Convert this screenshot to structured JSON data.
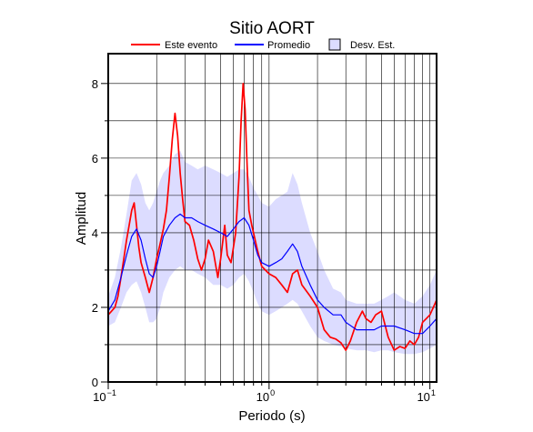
{
  "chart_data": {
    "type": "line",
    "title": "Sitio AORT",
    "xlabel": "Periodo (s)",
    "ylabel": "Amplitud",
    "xscale": "log",
    "xlim": [
      0.1,
      11
    ],
    "ylim": [
      0,
      8.8
    ],
    "grid": true,
    "legend_position": "top",
    "x_ticks": [
      {
        "value": 0.1,
        "base": "10",
        "exp": "−1"
      },
      {
        "value": 1,
        "base": "10",
        "exp": "0"
      },
      {
        "value": 10,
        "base": "10",
        "exp": "1"
      }
    ],
    "y_ticks": [
      {
        "value": 0,
        "label": "0"
      },
      {
        "value": 2,
        "label": "2"
      },
      {
        "value": 4,
        "label": "4"
      },
      {
        "value": 6,
        "label": "6"
      },
      {
        "value": 8,
        "label": "8"
      }
    ],
    "legend": [
      {
        "label": "Este evento",
        "kind": "line",
        "color": "#ff0000"
      },
      {
        "label": "Promedio",
        "kind": "line",
        "color": "#0000ff"
      },
      {
        "label": "Desv. Est.",
        "kind": "band",
        "color": "#dcdcff"
      }
    ],
    "series": [
      {
        "name": "Este evento",
        "color": "#ff0000",
        "x": [
          0.1,
          0.105,
          0.11,
          0.115,
          0.12,
          0.125,
          0.13,
          0.135,
          0.14,
          0.145,
          0.15,
          0.155,
          0.16,
          0.17,
          0.18,
          0.19,
          0.2,
          0.21,
          0.22,
          0.23,
          0.24,
          0.25,
          0.26,
          0.27,
          0.28,
          0.29,
          0.3,
          0.32,
          0.34,
          0.36,
          0.38,
          0.4,
          0.42,
          0.45,
          0.48,
          0.5,
          0.53,
          0.55,
          0.58,
          0.6,
          0.62,
          0.65,
          0.67,
          0.69,
          0.71,
          0.73,
          0.75,
          0.78,
          0.8,
          0.85,
          0.9,
          1.0,
          1.1,
          1.2,
          1.3,
          1.4,
          1.5,
          1.6,
          1.8,
          2.0,
          2.2,
          2.4,
          2.6,
          2.8,
          3.0,
          3.2,
          3.5,
          3.8,
          4.0,
          4.3,
          4.6,
          5.0,
          5.5,
          6.0,
          6.5,
          7.0,
          7.5,
          8.0,
          8.5,
          9.0,
          9.5,
          10.0,
          10.5,
          11.0
        ],
        "y": [
          1.8,
          1.9,
          2.0,
          2.3,
          2.8,
          3.3,
          3.8,
          4.2,
          4.6,
          4.8,
          4.2,
          3.6,
          3.2,
          2.8,
          2.4,
          2.8,
          3.3,
          3.7,
          4.1,
          4.6,
          5.5,
          6.5,
          7.2,
          6.6,
          5.6,
          4.9,
          4.3,
          4.2,
          3.8,
          3.3,
          3.0,
          3.3,
          3.8,
          3.5,
          2.8,
          3.3,
          4.2,
          3.4,
          3.2,
          3.6,
          4.0,
          5.5,
          7.0,
          8.0,
          7.3,
          5.8,
          4.6,
          4.2,
          4.0,
          3.5,
          3.1,
          2.9,
          2.8,
          2.6,
          2.4,
          2.9,
          3.0,
          2.6,
          2.3,
          2.0,
          1.4,
          1.2,
          1.15,
          1.05,
          0.85,
          1.1,
          1.6,
          1.9,
          1.7,
          1.6,
          1.8,
          1.9,
          1.2,
          0.85,
          0.95,
          0.9,
          1.1,
          1.0,
          1.2,
          1.6,
          1.7,
          1.8,
          2.0,
          2.2
        ]
      },
      {
        "name": "Promedio",
        "color": "#0000ff",
        "x": [
          0.1,
          0.11,
          0.12,
          0.13,
          0.14,
          0.15,
          0.16,
          0.17,
          0.18,
          0.19,
          0.2,
          0.21,
          0.22,
          0.24,
          0.26,
          0.28,
          0.3,
          0.33,
          0.36,
          0.4,
          0.45,
          0.5,
          0.55,
          0.6,
          0.65,
          0.7,
          0.75,
          0.8,
          0.85,
          0.9,
          1.0,
          1.1,
          1.2,
          1.3,
          1.4,
          1.5,
          1.6,
          1.8,
          2.0,
          2.2,
          2.5,
          2.8,
          3.0,
          3.5,
          4.0,
          4.5,
          5.0,
          5.5,
          6.0,
          7.0,
          8.0,
          9.0,
          10.0,
          11.0
        ],
        "y": [
          1.9,
          2.2,
          2.8,
          3.4,
          3.9,
          4.1,
          3.8,
          3.3,
          2.9,
          2.8,
          3.1,
          3.5,
          3.9,
          4.2,
          4.4,
          4.5,
          4.4,
          4.4,
          4.3,
          4.2,
          4.1,
          4.0,
          3.9,
          4.1,
          4.3,
          4.4,
          4.2,
          3.8,
          3.4,
          3.2,
          3.1,
          3.2,
          3.3,
          3.5,
          3.7,
          3.5,
          3.1,
          2.6,
          2.2,
          2.0,
          1.8,
          1.8,
          1.6,
          1.4,
          1.4,
          1.4,
          1.5,
          1.5,
          1.5,
          1.4,
          1.3,
          1.3,
          1.5,
          1.7
        ]
      }
    ],
    "band": {
      "name": "Desv. Est.",
      "color": "#dcdcff",
      "x": [
        0.1,
        0.11,
        0.12,
        0.13,
        0.14,
        0.15,
        0.16,
        0.17,
        0.18,
        0.19,
        0.2,
        0.21,
        0.22,
        0.24,
        0.26,
        0.28,
        0.3,
        0.33,
        0.36,
        0.4,
        0.45,
        0.5,
        0.55,
        0.6,
        0.65,
        0.7,
        0.75,
        0.8,
        0.85,
        0.9,
        1.0,
        1.1,
        1.2,
        1.3,
        1.4,
        1.5,
        1.6,
        1.8,
        2.0,
        2.2,
        2.5,
        2.8,
        3.0,
        3.5,
        4.0,
        4.5,
        5.0,
        5.5,
        6.0,
        7.0,
        8.0,
        9.0,
        10.0,
        11.0
      ],
      "upper": [
        2.3,
        2.8,
        3.6,
        4.5,
        5.4,
        5.6,
        5.3,
        4.8,
        4.6,
        4.8,
        5.1,
        5.4,
        5.6,
        5.8,
        6.1,
        6.2,
        5.9,
        5.8,
        5.7,
        5.8,
        5.7,
        5.6,
        5.5,
        5.6,
        5.7,
        5.7,
        5.5,
        5.2,
        5.0,
        4.8,
        4.7,
        4.9,
        5.0,
        5.1,
        5.6,
        5.3,
        4.8,
        4.0,
        3.5,
        3.0,
        2.5,
        2.4,
        2.2,
        2.1,
        2.1,
        2.1,
        2.2,
        2.3,
        2.4,
        2.2,
        2.1,
        2.3,
        2.6,
        3.0
      ],
      "lower": [
        1.5,
        1.6,
        2.0,
        2.4,
        2.6,
        2.7,
        2.4,
        2.0,
        1.6,
        1.6,
        1.7,
        2.0,
        2.4,
        2.8,
        3.0,
        3.1,
        3.0,
        3.0,
        2.9,
        2.8,
        2.6,
        2.6,
        2.5,
        2.6,
        2.8,
        2.9,
        2.7,
        2.4,
        2.1,
        1.9,
        1.8,
        1.9,
        2.0,
        2.1,
        2.2,
        2.1,
        1.9,
        1.5,
        1.2,
        1.1,
        1.0,
        0.95,
        0.9,
        0.85,
        0.85,
        0.8,
        0.85,
        0.85,
        0.8,
        0.75,
        0.75,
        0.8,
        0.9,
        1.0
      ]
    }
  }
}
